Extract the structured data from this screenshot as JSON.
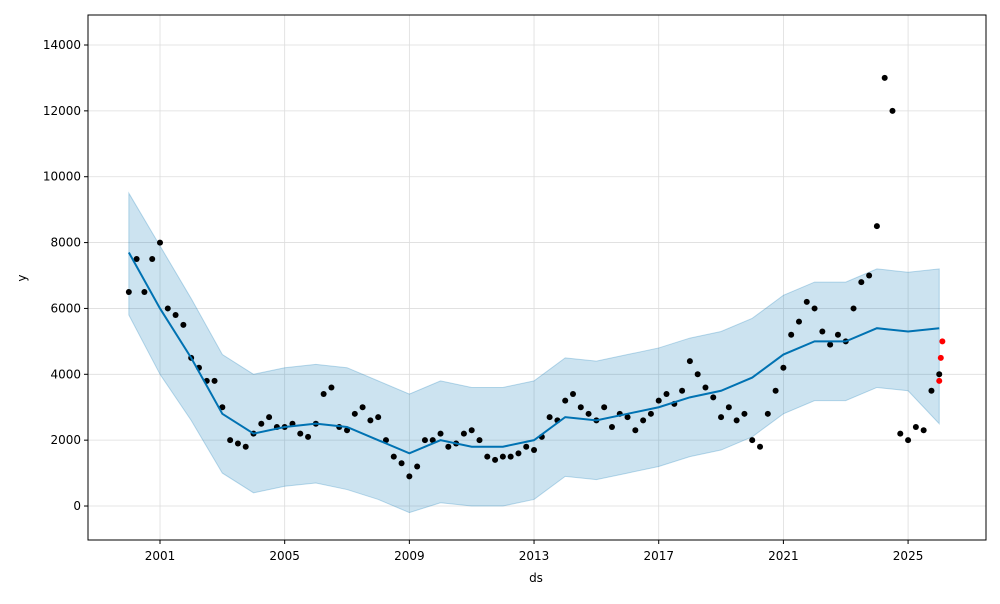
{
  "chart_data": {
    "type": "forecast",
    "xlabel": "ds",
    "ylabel": "y",
    "xlim": [
      1998.69,
      2027.5
    ],
    "ylim": [
      -1032,
      14911
    ],
    "xticks": [
      2001,
      2005,
      2009,
      2013,
      2017,
      2021,
      2025
    ],
    "yticks": [
      0,
      2000,
      4000,
      6000,
      8000,
      10000,
      12000,
      14000
    ],
    "grid": true,
    "actual": {
      "color": "#000000",
      "x": [
        2000.0,
        2000.25,
        2000.5,
        2000.75,
        2001.0,
        2001.25,
        2001.5,
        2001.75,
        2002.0,
        2002.25,
        2002.5,
        2002.75,
        2003.0,
        2003.25,
        2003.5,
        2003.75,
        2004.0,
        2004.25,
        2004.5,
        2004.75,
        2005.0,
        2005.25,
        2005.5,
        2005.75,
        2006.0,
        2006.25,
        2006.5,
        2006.75,
        2007.0,
        2007.25,
        2007.5,
        2007.75,
        2008.0,
        2008.25,
        2008.5,
        2008.75,
        2009.0,
        2009.25,
        2009.5,
        2009.75,
        2010.0,
        2010.25,
        2010.5,
        2010.75,
        2011.0,
        2011.25,
        2011.5,
        2011.75,
        2012.0,
        2012.25,
        2012.5,
        2012.75,
        2013.0,
        2013.25,
        2013.5,
        2013.75,
        2014.0,
        2014.25,
        2014.5,
        2014.75,
        2015.0,
        2015.25,
        2015.5,
        2015.75,
        2016.0,
        2016.25,
        2016.5,
        2016.75,
        2017.0,
        2017.25,
        2017.5,
        2017.75,
        2018.0,
        2018.25,
        2018.5,
        2018.75,
        2019.0,
        2019.25,
        2019.5,
        2019.75,
        2020.0,
        2020.25,
        2020.5,
        2020.75,
        2021.0,
        2021.25,
        2021.5,
        2021.75,
        2022.0,
        2022.25,
        2022.5,
        2022.75,
        2023.0,
        2023.25,
        2023.5,
        2023.75,
        2024.0,
        2024.25,
        2024.5,
        2024.75,
        2025.0,
        2025.25,
        2025.5,
        2025.75,
        2026.0
      ],
      "values": [
        6500,
        7500,
        6500,
        7500,
        8000,
        6000,
        5800,
        5500,
        4500,
        4200,
        3800,
        3800,
        3000,
        2000,
        1900,
        1800,
        2200,
        2500,
        2700,
        2400,
        2400,
        2500,
        2200,
        2100,
        2500,
        3400,
        3600,
        2400,
        2300,
        2800,
        3000,
        2600,
        2700,
        2000,
        1500,
        1300,
        900,
        1200,
        2000,
        2000,
        2200,
        1800,
        1900,
        2200,
        2300,
        2000,
        1500,
        1400,
        1500,
        1500,
        1600,
        1800,
        1700,
        2100,
        2700,
        2600,
        3200,
        3400,
        3000,
        2800,
        2600,
        3000,
        2400,
        2800,
        2700,
        2300,
        2600,
        2800,
        3200,
        3400,
        3100,
        3500,
        4400,
        4000,
        3600,
        3300,
        2700,
        3000,
        2600,
        2800,
        2000,
        1800,
        2800,
        3500,
        4200,
        5200,
        5600,
        6200,
        6000,
        5300,
        4900,
        5200,
        5000,
        6000,
        6800,
        7000,
        8500,
        13000,
        12000,
        2200,
        2000,
        2400,
        2300,
        3500,
        4000
      ]
    },
    "forecast": {
      "color": "#0072B2",
      "band_color": "#0072B2",
      "x": [
        2000,
        2001,
        2002,
        2003,
        2004,
        2005,
        2006,
        2007,
        2008,
        2009,
        2010,
        2011,
        2012,
        2013,
        2014,
        2015,
        2016,
        2017,
        2018,
        2019,
        2020,
        2021,
        2022,
        2023,
        2024,
        2025,
        2026
      ],
      "values": [
        7700,
        6000,
        4500,
        2800,
        2200,
        2400,
        2500,
        2400,
        2000,
        1600,
        2000,
        1800,
        1800,
        2000,
        2700,
        2600,
        2800,
        3000,
        3300,
        3500,
        3900,
        4600,
        5000,
        5000,
        5400,
        5300,
        5400
      ],
      "lower": [
        5800,
        4000,
        2600,
        1000,
        400,
        600,
        700,
        500,
        200,
        -200,
        100,
        0,
        0,
        200,
        900,
        800,
        1000,
        1200,
        1500,
        1700,
        2100,
        2800,
        3200,
        3200,
        3600,
        3500,
        2500
      ],
      "upper": [
        9500,
        7900,
        6300,
        4600,
        4000,
        4200,
        4300,
        4200,
        3800,
        3400,
        3800,
        3600,
        3600,
        3800,
        4500,
        4400,
        4600,
        4800,
        5100,
        5300,
        5700,
        6400,
        6800,
        6800,
        7200,
        7100,
        7200
      ]
    },
    "test": {
      "color": "#ff0000",
      "x": [
        2026.0,
        2026.05,
        2026.1
      ],
      "values": [
        3800,
        4500,
        5000
      ]
    }
  }
}
